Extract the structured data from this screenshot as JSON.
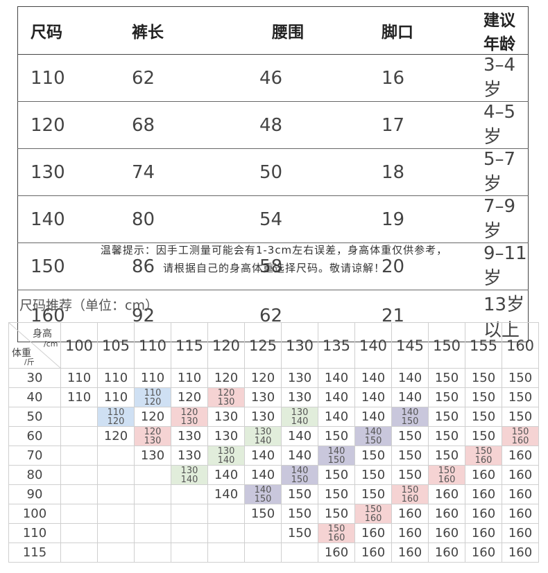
{
  "size_table": {
    "headers": [
      "尺码",
      "裤长",
      "腰围",
      "脚口",
      "建议年龄"
    ],
    "rows": [
      [
        "110",
        "62",
        "46",
        "16",
        "3–4岁"
      ],
      [
        "120",
        "68",
        "48",
        "17",
        "4–5岁"
      ],
      [
        "130",
        "74",
        "50",
        "18",
        "5–7岁"
      ],
      [
        "140",
        "80",
        "54",
        "19",
        "7–9岁"
      ],
      [
        "150",
        "86",
        "58",
        "20",
        "9–11岁"
      ],
      [
        "160",
        "92",
        "62",
        "21",
        "13岁以上"
      ]
    ]
  },
  "notes": {
    "line1": "温馨提示：因手工测量可能会有1-3cm左右误差，身高体重仅供参考，",
    "line2": "请根据自己的身高体重选择尺码。敬请谅解！"
  },
  "recommendation": {
    "title": "尺码推荐（单位：cm）",
    "corner": {
      "height_label": "身高",
      "height_unit": "/cm",
      "weight_label": "体重",
      "weight_unit": "/斤"
    },
    "heights": [
      "100",
      "105",
      "110",
      "115",
      "120",
      "125",
      "130",
      "135",
      "140",
      "145",
      "150",
      "155",
      "160"
    ],
    "colors": {
      "blue": "#cfe0f3",
      "pink": "#f5d3d3",
      "green": "#e1eddb",
      "purple": "#c9c7dc"
    },
    "rows": [
      {
        "weight": "30",
        "cells": [
          "110",
          "110",
          "110",
          "110",
          "120",
          "120",
          "130",
          "140",
          "140",
          "140",
          "150",
          "150",
          "150"
        ]
      },
      {
        "weight": "40",
        "cells": [
          "110",
          "110",
          "110/120",
          "120",
          "120/130",
          "130",
          "130",
          "140",
          "140",
          "140",
          "150",
          "150",
          "150"
        ]
      },
      {
        "weight": "50",
        "cells": [
          "",
          "110/120",
          "120",
          "120/130",
          "130",
          "130",
          "130/140",
          "140",
          "140",
          "140/150",
          "150",
          "150",
          "150"
        ]
      },
      {
        "weight": "60",
        "cells": [
          "",
          "120",
          "120/130",
          "130",
          "130",
          "130/140",
          "140",
          "150",
          "140/150",
          "150",
          "150",
          "150",
          "150/160"
        ]
      },
      {
        "weight": "70",
        "cells": [
          "",
          "",
          "130",
          "130",
          "130/140",
          "140",
          "140",
          "140/150",
          "150",
          "150",
          "150",
          "150/160",
          "160"
        ]
      },
      {
        "weight": "80",
        "cells": [
          "",
          "",
          "",
          "130/140",
          "140",
          "140",
          "140/150",
          "150",
          "150",
          "150",
          "150/160",
          "160",
          "160"
        ]
      },
      {
        "weight": "90",
        "cells": [
          "",
          "",
          "",
          "",
          "140",
          "140/150",
          "150",
          "150",
          "150",
          "150/160",
          "160",
          "160",
          "160"
        ]
      },
      {
        "weight": "100",
        "cells": [
          "",
          "",
          "",
          "",
          "",
          "150",
          "150",
          "150",
          "150/160",
          "160",
          "160",
          "160",
          "160"
        ]
      },
      {
        "weight": "110",
        "cells": [
          "",
          "",
          "",
          "",
          "",
          "",
          "150",
          "150/160",
          "160",
          "160",
          "160",
          "160",
          "160"
        ]
      },
      {
        "weight": "115",
        "cells": [
          "",
          "",
          "",
          "",
          "",
          "",
          "",
          "160",
          "160",
          "160",
          "160",
          "160",
          "160"
        ]
      }
    ]
  }
}
